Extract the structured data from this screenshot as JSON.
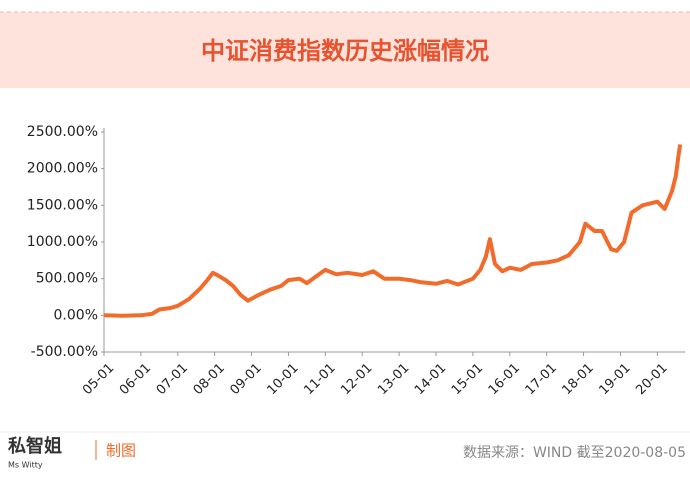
{
  "chart_data": {
    "type": "line",
    "title": "中证消费指数历史涨幅情况",
    "x": [
      0,
      0.5,
      1,
      1.3,
      1.5,
      1.8,
      2,
      2.3,
      2.6,
      2.8,
      2.95,
      3.1,
      3.3,
      3.5,
      3.7,
      3.9,
      4.2,
      4.5,
      4.8,
      5.0,
      5.3,
      5.5,
      5.8,
      6.0,
      6.3,
      6.6,
      7.0,
      7.3,
      7.6,
      8.0,
      8.3,
      8.6,
      9.0,
      9.3,
      9.6,
      10.0,
      10.2,
      10.35,
      10.46,
      10.6,
      10.8,
      11.0,
      11.3,
      11.6,
      12.0,
      12.3,
      12.6,
      12.9,
      13.05,
      13.3,
      13.5,
      13.75,
      13.9,
      14.1,
      14.3,
      14.6,
      15.0,
      15.2,
      15.4,
      15.5,
      15.58,
      15.62
    ],
    "series": [
      {
        "name": "中证消费指数",
        "color": "#f26b2a",
        "values": [
          0,
          -5,
          0,
          20,
          80,
          100,
          130,
          220,
          360,
          480,
          580,
          540,
          480,
          400,
          280,
          200,
          280,
          350,
          400,
          480,
          500,
          440,
          550,
          620,
          560,
          580,
          550,
          600,
          500,
          500,
          480,
          450,
          430,
          470,
          420,
          500,
          620,
          800,
          1040,
          700,
          600,
          650,
          620,
          700,
          720,
          750,
          820,
          1000,
          1250,
          1150,
          1150,
          900,
          880,
          1000,
          1400,
          1500,
          1550,
          1450,
          1700,
          1900,
          2200,
          2330
        ]
      }
    ],
    "ylim": [
      -500,
      2500
    ],
    "yticks": [
      {
        "value": -500,
        "label": "-500.00%"
      },
      {
        "value": 0,
        "label": "0.00%"
      },
      {
        "value": 500,
        "label": "500.00%"
      },
      {
        "value": 1000,
        "label": "1000.00%"
      },
      {
        "value": 1500,
        "label": "1500.00%"
      },
      {
        "value": 2000,
        "label": "2000.00%"
      },
      {
        "value": 2500,
        "label": "2500.00%"
      }
    ],
    "xlim": [
      0,
      15.75
    ],
    "xticks": [
      {
        "value": 0,
        "label": "05-01"
      },
      {
        "value": 1,
        "label": "06-01"
      },
      {
        "value": 2,
        "label": "07-01"
      },
      {
        "value": 3,
        "label": "08-01"
      },
      {
        "value": 4,
        "label": "09-01"
      },
      {
        "value": 5,
        "label": "10-01"
      },
      {
        "value": 6,
        "label": "11-01"
      },
      {
        "value": 7,
        "label": "12-01"
      },
      {
        "value": 8,
        "label": "13-01"
      },
      {
        "value": 9,
        "label": "14-01"
      },
      {
        "value": 10,
        "label": "15-01"
      },
      {
        "value": 11,
        "label": "16-01"
      },
      {
        "value": 12,
        "label": "17-01"
      },
      {
        "value": 13,
        "label": "18-01"
      },
      {
        "value": 14,
        "label": "19-01"
      },
      {
        "value": 15,
        "label": "20-01"
      }
    ],
    "grid": false
  },
  "footer": {
    "logo": "私智姐",
    "logo_sub": "Ms Witty",
    "credit": "制图",
    "source": "数据来源：WIND 截至2020-08-05"
  }
}
